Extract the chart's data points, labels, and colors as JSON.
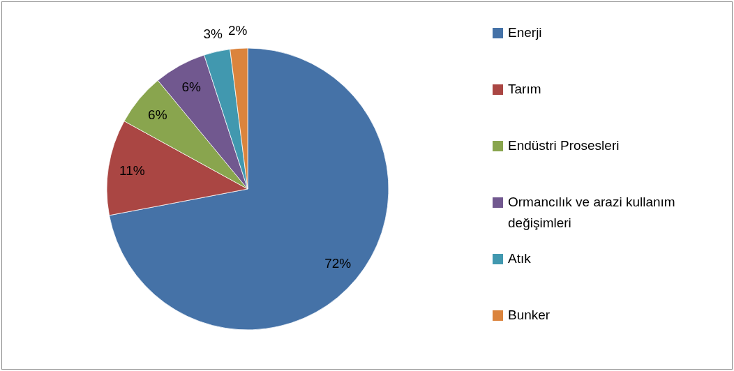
{
  "chart_data": {
    "type": "pie",
    "categories": [
      "Enerji",
      "Tarım",
      "Endüstri Prosesleri",
      "Ormancılık ve arazi kullanım değişimleri",
      "Atık",
      "Bunker"
    ],
    "values": [
      72,
      11,
      6,
      6,
      3,
      2
    ],
    "colors": [
      "#4572a7",
      "#aa4643",
      "#89a54e",
      "#71588f",
      "#4198af",
      "#db843d"
    ],
    "value_labels": [
      "72%",
      "11%",
      "6%",
      "6%",
      "3%",
      "2%"
    ],
    "legend": "right"
  }
}
